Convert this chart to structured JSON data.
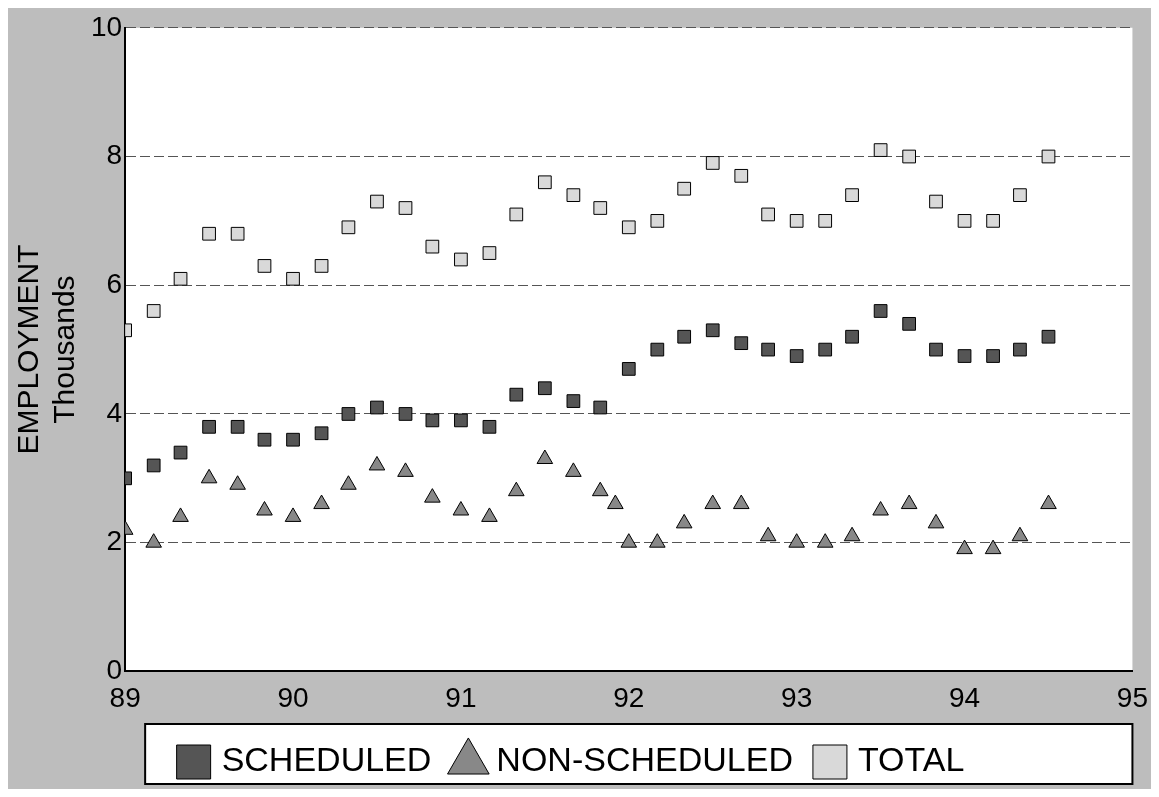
{
  "chart_data": {
    "type": "scatter",
    "ylabel": "EMPLOYMENT\nThousands",
    "xlim": [
      89,
      95
    ],
    "xticks": [
      89,
      90,
      91,
      92,
      93,
      94,
      95
    ],
    "ylim": [
      0,
      10
    ],
    "yticks": [
      0,
      2,
      4,
      6,
      8,
      10
    ],
    "grid": "y",
    "legend": "bottom",
    "series": [
      {
        "name": "SCHEDULED",
        "color": "#555555",
        "marker": "square",
        "x": [
          89.0,
          89.17,
          89.33,
          89.5,
          89.67,
          89.83,
          90.0,
          90.17,
          90.33,
          90.5,
          90.67,
          90.83,
          91.0,
          91.17,
          91.33,
          91.5,
          91.67,
          91.83,
          92.0,
          92.17,
          92.33,
          92.5,
          92.67,
          92.83,
          93.0,
          93.17,
          93.33,
          93.5,
          93.67,
          93.83,
          94.0,
          94.17,
          94.33,
          94.5
        ],
        "values": [
          3.0,
          3.2,
          3.4,
          3.8,
          3.8,
          3.6,
          3.6,
          3.7,
          4.0,
          4.1,
          4.0,
          3.9,
          3.9,
          3.8,
          4.3,
          4.4,
          4.2,
          4.1,
          4.7,
          5.0,
          5.2,
          5.3,
          5.1,
          5.0,
          4.9,
          5.0,
          5.2,
          5.6,
          5.4,
          5.0,
          4.9,
          4.9,
          5.0,
          5.2
        ]
      },
      {
        "name": "NON-SCHEDULED",
        "color": "#888888",
        "marker": "triangle",
        "x": [
          89.0,
          89.17,
          89.33,
          89.5,
          89.67,
          89.83,
          90.0,
          90.17,
          90.33,
          90.5,
          90.67,
          90.83,
          91.0,
          91.17,
          91.33,
          91.5,
          91.67,
          91.83,
          91.92,
          92.0,
          92.17,
          92.33,
          92.5,
          92.67,
          92.83,
          93.0,
          93.17,
          93.33,
          93.5,
          93.67,
          93.83,
          94.0,
          94.17,
          94.33,
          94.5
        ],
        "values": [
          2.2,
          2.0,
          2.4,
          3.0,
          2.9,
          2.5,
          2.4,
          2.6,
          2.9,
          3.2,
          3.1,
          2.7,
          2.5,
          2.4,
          2.8,
          3.3,
          3.1,
          2.8,
          2.6,
          2.0,
          2.0,
          2.3,
          2.6,
          2.6,
          2.1,
          2.0,
          2.0,
          2.1,
          2.5,
          2.6,
          2.3,
          1.9,
          1.9,
          2.1,
          2.6
        ]
      },
      {
        "name": "TOTAL",
        "color": "#d9d9d9",
        "marker": "square",
        "x": [
          89.0,
          89.17,
          89.33,
          89.5,
          89.67,
          89.83,
          90.0,
          90.17,
          90.33,
          90.5,
          90.67,
          90.83,
          91.0,
          91.17,
          91.33,
          91.5,
          91.67,
          91.83,
          92.0,
          92.17,
          92.33,
          92.5,
          92.67,
          92.83,
          93.0,
          93.17,
          93.33,
          93.5,
          93.67,
          93.83,
          94.0,
          94.17,
          94.33,
          94.5
        ],
        "values": [
          5.3,
          5.6,
          6.1,
          6.8,
          6.8,
          6.3,
          6.1,
          6.3,
          6.9,
          7.3,
          7.2,
          6.6,
          6.4,
          6.5,
          7.1,
          7.6,
          7.4,
          7.2,
          6.9,
          7.0,
          7.5,
          7.9,
          7.7,
          7.1,
          7.0,
          7.0,
          7.4,
          8.1,
          8.0,
          7.3,
          7.0,
          7.0,
          7.4,
          8.0
        ]
      }
    ]
  }
}
